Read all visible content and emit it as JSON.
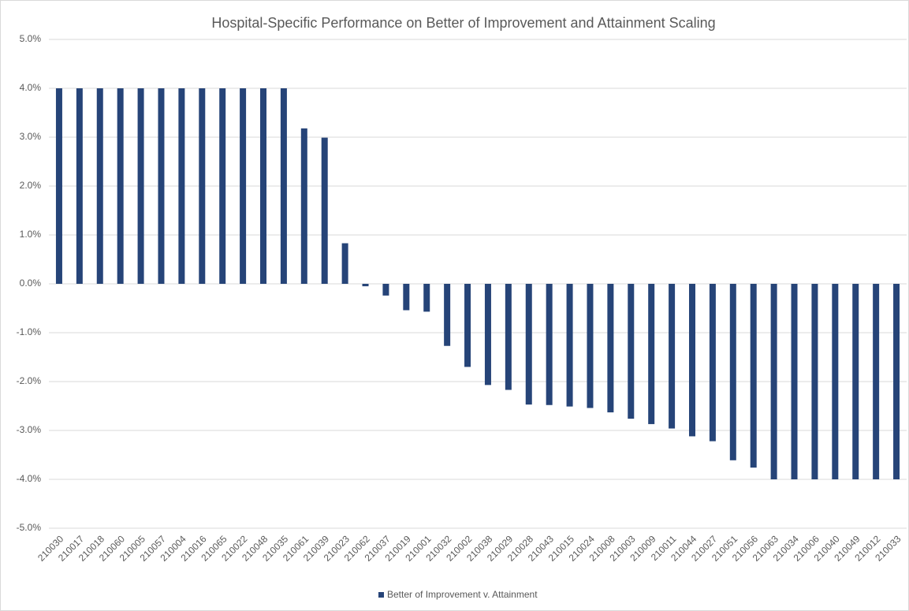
{
  "chart_data": {
    "type": "bar",
    "title": "Hospital-Specific Performance on Better of Improvement and Attainment Scaling",
    "categories": [
      "210030",
      "210017",
      "210018",
      "210060",
      "210005",
      "210057",
      "210004",
      "210016",
      "210065",
      "210022",
      "210048",
      "210035",
      "210061",
      "210039",
      "210023",
      "210062",
      "210037",
      "210019",
      "210001",
      "210032",
      "210002",
      "210038",
      "210029",
      "210028",
      "210043",
      "210015",
      "210024",
      "210008",
      "210003",
      "210009",
      "210011",
      "210044",
      "210027",
      "210051",
      "210056",
      "210063",
      "210034",
      "210006",
      "210040",
      "210049",
      "210012",
      "210033"
    ],
    "series": [
      {
        "name": "Better of Improvement v. Attainment",
        "color": "#264478",
        "values": [
          4,
          4,
          4,
          4,
          4,
          4,
          4,
          4,
          4,
          4,
          4,
          4,
          3.18,
          2.99,
          0.83,
          -0.05,
          -0.24,
          -0.54,
          -0.57,
          -1.27,
          -1.7,
          -2.07,
          -2.17,
          -2.47,
          -2.48,
          -2.51,
          -2.54,
          -2.63,
          -2.76,
          -2.87,
          -2.96,
          -3.12,
          -3.22,
          -3.61,
          -3.76,
          -4,
          -4,
          -4,
          -4,
          -4,
          -4,
          -4
        ]
      }
    ],
    "ylim": [
      -5,
      5
    ],
    "yticks": [
      {
        "value": -5,
        "label": "-5.0%"
      },
      {
        "value": -4,
        "label": "-4.0%"
      },
      {
        "value": -3,
        "label": "-3.0%"
      },
      {
        "value": -2,
        "label": "-2.0%"
      },
      {
        "value": -1,
        "label": "-1.0%"
      },
      {
        "value": 0,
        "label": "0.0%"
      },
      {
        "value": 1,
        "label": "1.0%"
      },
      {
        "value": 2,
        "label": "2.0%"
      },
      {
        "value": 3,
        "label": "3.0%"
      },
      {
        "value": 4,
        "label": "4.0%"
      },
      {
        "value": 5,
        "label": "5.0%"
      }
    ],
    "grid": true,
    "legend": "bottom"
  }
}
